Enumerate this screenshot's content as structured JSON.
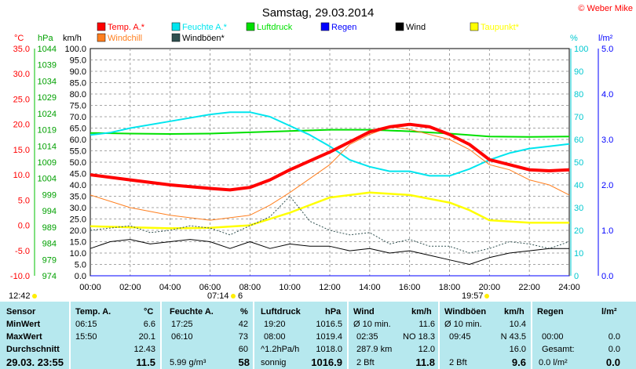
{
  "title": "Samstag, 29.03.2014",
  "copyright": "© Weber Mike",
  "colors": {
    "temp": "#ff0000",
    "windchill": "#ff7f1f",
    "humidity": "#00e5ee",
    "gust": "#2f4f4f",
    "pressure": "#00e000",
    "rain": "#0000ff",
    "wind": "#000000",
    "dewpoint": "#ffff00",
    "table_bg": "#b6e8ee"
  },
  "legend": [
    {
      "key": "temp",
      "label": "Temp. A.*"
    },
    {
      "key": "humidity",
      "label": "Feuchte A.*"
    },
    {
      "key": "pressure",
      "label": "Luftdruck"
    },
    {
      "key": "rain",
      "label": "Regen"
    },
    {
      "key": "wind",
      "label": "Wind"
    },
    {
      "key": "dewpoint",
      "label": "Taupunkt*"
    },
    {
      "key": "windchill",
      "label": "Windchill"
    },
    {
      "key": "gust",
      "label": "Windböen*"
    }
  ],
  "axis_units": {
    "temp": "°C",
    "pressure": "hPa",
    "wind": "km/h",
    "humidity": "%",
    "rain": "l/m²"
  },
  "axes": {
    "temp_ticks": [
      "35.0",
      "30.0",
      "25.0",
      "20.0",
      "15.0",
      "10.0",
      "5.0",
      "0.0",
      "-5.0",
      "-10.0"
    ],
    "pressure_ticks": [
      "1044",
      "1039",
      "1034",
      "1029",
      "1024",
      "1019",
      "1014",
      "1009",
      "1004",
      "999",
      "994",
      "989",
      "984",
      "979",
      "974"
    ],
    "wind_ticks": [
      "100.0",
      "95.0",
      "90.0",
      "85.0",
      "80.0",
      "75.0",
      "70.0",
      "65.0",
      "60.0",
      "55.0",
      "50.0",
      "45.0",
      "40.0",
      "35.0",
      "30.0",
      "25.0",
      "20.0",
      "15.0",
      "10.0",
      "5.0",
      "0.0"
    ],
    "humidity_ticks": [
      "100",
      "90",
      "80",
      "70",
      "60",
      "50",
      "40",
      "30",
      "20",
      "10",
      "0"
    ],
    "rain_ticks": [
      "5.0",
      "4.0",
      "3.0",
      "2.0",
      "1.0",
      "0.0"
    ],
    "x_ticks": [
      "00:00",
      "02:00",
      "04:00",
      "06:00",
      "08:00",
      "10:00",
      "12:00",
      "14:00",
      "16:00",
      "18:00",
      "20:00",
      "22:00",
      "24:00"
    ]
  },
  "sun": {
    "moonrise": "12:42",
    "sunrise": "07:14",
    "sunrise_extra": "6",
    "sunset": "19:57"
  },
  "chart_data": {
    "type": "line",
    "title": "Samstag, 29.03.2014",
    "x_unit": "hours",
    "xlim": [
      0,
      24
    ],
    "series": [
      {
        "name": "Temp. A.*",
        "axis": "°C",
        "x": [
          0,
          2,
          4,
          6,
          7,
          8,
          9,
          10,
          12,
          14,
          15,
          16,
          17,
          18,
          19,
          20,
          21,
          22,
          23,
          24
        ],
        "values": [
          10.0,
          9.0,
          8.0,
          7.3,
          7.0,
          7.5,
          9.0,
          11.0,
          14.5,
          18.5,
          19.5,
          20.0,
          19.5,
          18.0,
          16.0,
          13.0,
          12.0,
          11.0,
          10.8,
          11.0
        ]
      },
      {
        "name": "Windchill",
        "axis": "°C",
        "x": [
          0,
          2,
          4,
          6,
          7,
          8,
          9,
          10,
          12,
          13,
          14,
          15,
          16,
          17,
          18,
          19,
          20,
          21,
          22,
          23,
          24
        ],
        "values": [
          6.0,
          3.5,
          2.0,
          1.0,
          1.5,
          2.0,
          4.0,
          6.5,
          12.0,
          16.0,
          18.0,
          19.5,
          19.0,
          18.0,
          17.0,
          15.0,
          12.0,
          11.0,
          9.0,
          8.0,
          6.0
        ]
      },
      {
        "name": "Feuchte A.*",
        "axis": "%",
        "x": [
          0,
          1,
          2,
          4,
          6,
          7,
          8,
          9,
          10,
          11,
          12,
          13,
          14,
          15,
          16,
          17,
          18,
          19,
          20,
          21,
          22,
          23,
          24
        ],
        "values": [
          62,
          63,
          65,
          68,
          71,
          72,
          72,
          70,
          66,
          62,
          57,
          51,
          48,
          46,
          46,
          44,
          44,
          47,
          51,
          54,
          56,
          57,
          58
        ]
      },
      {
        "name": "Luftdruck",
        "axis": "hPa",
        "x": [
          0,
          2,
          4,
          6,
          8,
          10,
          12,
          14,
          16,
          18,
          20,
          22,
          24
        ],
        "values": [
          1018.0,
          1017.8,
          1017.7,
          1017.8,
          1018.2,
          1018.6,
          1019.0,
          1019.0,
          1018.5,
          1017.8,
          1016.9,
          1016.8,
          1016.9
        ]
      },
      {
        "name": "Taupunkt*",
        "axis": "°C",
        "x": [
          0,
          2,
          4,
          6,
          8,
          10,
          12,
          14,
          16,
          18,
          19,
          20,
          22,
          24
        ],
        "values": [
          -0.2,
          -0.4,
          -0.6,
          -0.5,
          0.0,
          2.5,
          5.5,
          6.5,
          6.0,
          4.5,
          3.0,
          1.0,
          0.5,
          0.5
        ]
      },
      {
        "name": "Wind",
        "axis": "km/h",
        "x": [
          0,
          1,
          2,
          3,
          4,
          5,
          6,
          7,
          8,
          9,
          10,
          11,
          12,
          13,
          14,
          15,
          16,
          17,
          18,
          19,
          20,
          21,
          22,
          23,
          24
        ],
        "values": [
          12,
          15,
          16,
          14,
          15,
          16,
          15,
          12,
          15,
          12,
          14,
          13,
          13,
          11,
          12,
          10,
          11,
          9,
          7,
          5,
          8,
          10,
          11,
          12,
          12
        ]
      },
      {
        "name": "Windböen*",
        "axis": "km/h",
        "x": [
          0,
          1,
          2,
          3,
          4,
          5,
          6,
          7,
          8,
          9,
          10,
          11,
          12,
          13,
          14,
          15,
          16,
          17,
          18,
          19,
          20,
          21,
          22,
          23,
          24
        ],
        "values": [
          20,
          21,
          22,
          19,
          20,
          22,
          21,
          18,
          22,
          26,
          35,
          24,
          20,
          18,
          19,
          14,
          16,
          13,
          13,
          10,
          12,
          15,
          14,
          12,
          15
        ]
      },
      {
        "name": "Regen",
        "axis": "l/m²",
        "x": [
          0,
          24
        ],
        "values": [
          0.0,
          0.0
        ]
      }
    ],
    "ylim_temp": [
      -10,
      35
    ],
    "ylim_pressure": [
      974,
      1044
    ],
    "ylim_wind": [
      0,
      100
    ],
    "ylim_humidity": [
      0,
      100
    ],
    "ylim_rain": [
      0,
      5
    ],
    "grid": true
  },
  "table": {
    "sensor": {
      "h": "Sensor",
      "min": "MinWert",
      "max": "MaxWert",
      "avg": "Durchschnitt",
      "now": "29.03. 23:55"
    },
    "temp": {
      "h": "Temp. A.",
      "u": "°C",
      "min_t": "06:15",
      "min_v": "6.6",
      "max_t": "15:50",
      "max_v": "20.1",
      "avg": "12.43",
      "now": "11.5"
    },
    "hum": {
      "h": "Feuchte A.",
      "u": "%",
      "min_t": "17:25",
      "min_v": "42",
      "max_t": "06:10",
      "max_v": "73",
      "avg": "60",
      "now_extra": "5.99 g/m³",
      "now": "58"
    },
    "pres": {
      "h": "Luftdruck",
      "u": "hPa",
      "min_t": "19:20",
      "min_v": "1016.5",
      "max_t": "08:00",
      "max_v": "1019.4",
      "avg_l": "^1.2hPa/h",
      "avg": "1018.0",
      "now_l": "sonnig",
      "now": "1016.9"
    },
    "wind": {
      "h": "Wind",
      "u": "km/h",
      "r1l": "Ø 10 min.",
      "r1v": "11.6",
      "r2l": "02:35",
      "r2m": "NO 18.3",
      "r3l": "287.9 km",
      "r3v": "12.0",
      "r4l": "2 Bft",
      "r4v": "11.8"
    },
    "gust": {
      "h": "Windböen",
      "u": "km/h",
      "r1l": "Ø 10 min.",
      "r1v": "10.4",
      "r2l": "09:45",
      "r2m": "N 43.5",
      "r3v": "16.0",
      "r4l": "2 Bft",
      "r4v": "9.6"
    },
    "rain": {
      "h": "Regen",
      "u": "l/m²",
      "r2l": "00:00",
      "r2v": "0.0",
      "r3l": "Gesamt:",
      "r3v": "0.0",
      "r4l": "0.0 l/m²",
      "r4v": "0.0"
    }
  }
}
